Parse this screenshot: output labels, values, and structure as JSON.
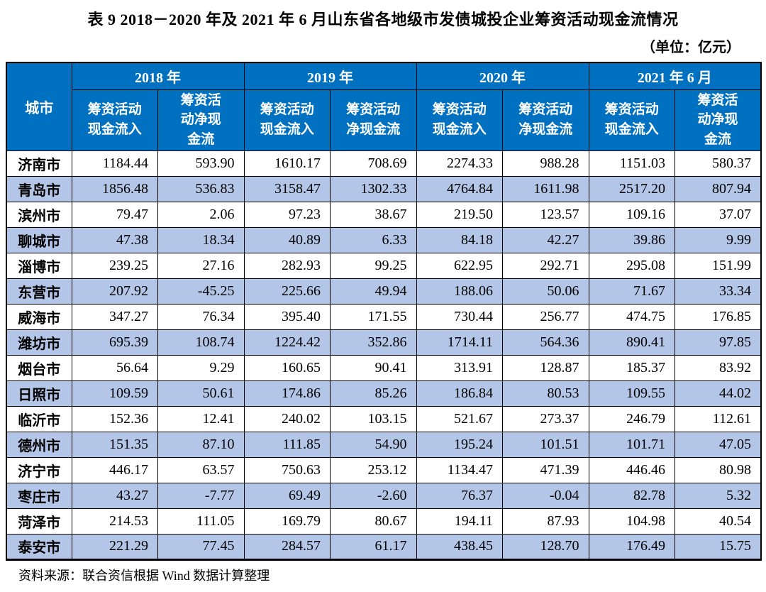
{
  "title": "表 9  2018－2020 年及 2021 年 6 月山东省各地级市发债城投企业筹资活动现金流情况",
  "unit_note": "（单位：亿元）",
  "source_note": "资料来源：联合资信根据 Wind 数据计算整理",
  "colors": {
    "header_bg": "#0070C0",
    "stripe_bg": "#B4C6E7",
    "border": "#000000",
    "header_text": "#FFFFFF"
  },
  "table": {
    "corner_header": "城市",
    "groups": [
      {
        "label": "2018 年",
        "subcols": [
          "筹资活动\n现金流入",
          "筹资活\n动净现\n金流"
        ]
      },
      {
        "label": "2019 年",
        "subcols": [
          "筹资活动\n现金流入",
          "筹资活动\n净现金流"
        ]
      },
      {
        "label": "2020 年",
        "subcols": [
          "筹资活动\n现金流入",
          "筹资活动\n净现金流"
        ]
      },
      {
        "label": "2021 年 6 月",
        "subcols": [
          "筹资活动\n现金流入",
          "筹资活\n动净现\n金流"
        ]
      }
    ],
    "rows": [
      {
        "city": "济南市",
        "values": [
          "1184.44",
          "593.90",
          "1610.17",
          "708.69",
          "2274.33",
          "988.28",
          "1151.03",
          "580.37"
        ]
      },
      {
        "city": "青岛市",
        "values": [
          "1856.48",
          "536.83",
          "3158.47",
          "1302.33",
          "4764.84",
          "1611.98",
          "2517.20",
          "807.94"
        ]
      },
      {
        "city": "滨州市",
        "values": [
          "79.47",
          "2.06",
          "97.23",
          "38.67",
          "219.50",
          "123.57",
          "109.16",
          "37.07"
        ]
      },
      {
        "city": "聊城市",
        "values": [
          "47.38",
          "18.34",
          "40.89",
          "6.33",
          "84.18",
          "42.27",
          "39.86",
          "9.99"
        ]
      },
      {
        "city": "淄博市",
        "values": [
          "239.25",
          "27.16",
          "282.93",
          "99.25",
          "622.95",
          "292.71",
          "295.08",
          "151.99"
        ]
      },
      {
        "city": "东营市",
        "values": [
          "207.92",
          "-45.25",
          "225.66",
          "49.94",
          "188.06",
          "50.06",
          "71.67",
          "33.34"
        ]
      },
      {
        "city": "威海市",
        "values": [
          "347.27",
          "76.34",
          "395.40",
          "171.55",
          "730.44",
          "256.77",
          "474.75",
          "176.85"
        ]
      },
      {
        "city": "潍坊市",
        "values": [
          "695.39",
          "108.74",
          "1224.42",
          "352.86",
          "1714.11",
          "564.36",
          "890.41",
          "97.85"
        ]
      },
      {
        "city": "烟台市",
        "values": [
          "56.64",
          "9.29",
          "160.65",
          "90.41",
          "313.91",
          "128.87",
          "185.37",
          "83.92"
        ]
      },
      {
        "city": "日照市",
        "values": [
          "109.59",
          "50.61",
          "174.86",
          "85.26",
          "186.84",
          "80.53",
          "109.55",
          "44.02"
        ]
      },
      {
        "city": "临沂市",
        "values": [
          "152.36",
          "12.41",
          "240.02",
          "103.15",
          "521.67",
          "273.37",
          "246.79",
          "112.61"
        ]
      },
      {
        "city": "德州市",
        "values": [
          "151.35",
          "87.10",
          "111.85",
          "54.90",
          "195.24",
          "101.51",
          "101.71",
          "47.05"
        ]
      },
      {
        "city": "济宁市",
        "values": [
          "446.17",
          "63.57",
          "750.63",
          "253.12",
          "1134.47",
          "471.39",
          "446.46",
          "80.98"
        ]
      },
      {
        "city": "枣庄市",
        "values": [
          "43.27",
          "-7.77",
          "69.49",
          "-2.60",
          "76.37",
          "-0.04",
          "82.78",
          "5.32"
        ]
      },
      {
        "city": "菏泽市",
        "values": [
          "214.53",
          "111.05",
          "169.79",
          "80.67",
          "194.11",
          "87.93",
          "104.98",
          "40.54"
        ]
      },
      {
        "city": "泰安市",
        "values": [
          "221.29",
          "77.45",
          "284.57",
          "61.17",
          "438.45",
          "128.70",
          "176.49",
          "15.75"
        ]
      }
    ]
  }
}
